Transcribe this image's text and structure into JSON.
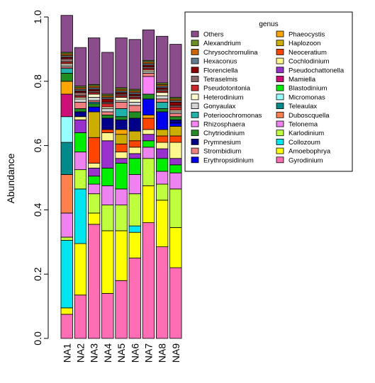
{
  "chart_data": {
    "type": "bar",
    "stacked": true,
    "title": "",
    "xlabel": "",
    "ylabel": "Abundance",
    "ylim": [
      0,
      1
    ],
    "y_ticks": [
      "0.0",
      "0.2",
      "0.4",
      "0.6",
      "0.8",
      "1.0"
    ],
    "grid": false,
    "legend_position": "right",
    "legend_title": "genus",
    "categories": [
      "NA1",
      "NA2",
      "NA3",
      "NA4",
      "NA5",
      "NA6",
      "NA7",
      "NA8",
      "NA9"
    ],
    "series": [
      {
        "name": "Gyrodinium",
        "color": "#ff6eb4",
        "values": [
          0.075,
          0.135,
          0.355,
          0.14,
          0.18,
          0.25,
          0.36,
          0.285,
          0.22
        ]
      },
      {
        "name": "Amoebophrya",
        "color": "#ffff00",
        "values": [
          0.02,
          0.16,
          0.035,
          0.195,
          0.155,
          0.08,
          0.115,
          0.145,
          0.125
        ]
      },
      {
        "name": "Collozoum",
        "color": "#00e5ee",
        "values": [
          0.21,
          0.17,
          0.0,
          0.0,
          0.0,
          0.02,
          0.0,
          0.0,
          0.0
        ]
      },
      {
        "name": "Karlodinium",
        "color": "#c0ff3e",
        "values": [
          0.01,
          0.06,
          0.06,
          0.08,
          0.08,
          0.1,
          0.085,
          0.05,
          0.12
        ]
      },
      {
        "name": "Telonema",
        "color": "#ee82ee",
        "values": [
          0.075,
          0.055,
          0.03,
          0.06,
          0.05,
          0.06,
          0.035,
          0.04,
          0.05
        ]
      },
      {
        "name": "Duboscquella",
        "color": "#ff7f50",
        "values": [
          0.12,
          0.0,
          0.0,
          0.0,
          0.0,
          0.0,
          0.0,
          0.0,
          0.0
        ]
      },
      {
        "name": "Teleaulax",
        "color": "#008b8b",
        "values": [
          0.1,
          0.0,
          0.0,
          0.0,
          0.0,
          0.0,
          0.0,
          0.0,
          0.0
        ]
      },
      {
        "name": "Micromonas",
        "color": "#97ffff",
        "values": [
          0.08,
          0.0,
          0.0,
          0.0,
          0.0,
          0.0,
          0.0,
          0.0,
          0.0
        ]
      },
      {
        "name": "Blastodinium",
        "color": "#00ee00",
        "values": [
          0.0,
          0.06,
          0.025,
          0.055,
          0.08,
          0.05,
          0.02,
          0.04,
          0.025
        ]
      },
      {
        "name": "Mamiella",
        "color": "#cd1076",
        "values": [
          0.07,
          0.0,
          0.0,
          0.0,
          0.0,
          0.0,
          0.0,
          0.0,
          0.0
        ]
      },
      {
        "name": "Pseudochattonella",
        "color": "#9932cc",
        "values": [
          0.0,
          0.04,
          0.025,
          0.085,
          0.015,
          0.015,
          0.02,
          0.03,
          0.02
        ]
      },
      {
        "name": "Cochlodinium",
        "color": "#fff68f",
        "values": [
          0.0,
          0.01,
          0.015,
          0.025,
          0.02,
          0.02,
          0.015,
          0.02,
          0.05
        ]
      },
      {
        "name": "Neoceratium",
        "color": "#ff4500",
        "values": [
          0.0,
          0.0,
          0.08,
          0.01,
          0.025,
          0.02,
          0.035,
          0.02,
          0.02
        ]
      },
      {
        "name": "Haplozoon",
        "color": "#cdad00",
        "values": [
          0.0,
          0.0,
          0.08,
          0.0,
          0.03,
          0.03,
          0.0,
          0.02,
          0.03
        ]
      },
      {
        "name": "Phaeocystis",
        "color": "#ffa500",
        "values": [
          0.04,
          0.0,
          0.0,
          0.0,
          0.015,
          0.0,
          0.01,
          0.0,
          0.0
        ]
      },
      {
        "name": "Erythropsidinium",
        "color": "#0000ee",
        "values": [
          0.0,
          0.0,
          0.015,
          0.0,
          0.0,
          0.0,
          0.05,
          0.055,
          0.01
        ]
      },
      {
        "name": "Prymnesium",
        "color": "#00008b",
        "values": [
          0.0,
          0.015,
          0.0,
          0.035,
          0.03,
          0.04,
          0.0,
          0.0,
          0.01
        ]
      },
      {
        "name": "Chytriodinium",
        "color": "#228b22",
        "values": [
          0.025,
          0.01,
          0.01,
          0.01,
          0.01,
          0.02,
          0.015,
          0.01,
          0.01
        ]
      },
      {
        "name": "Rhizosphaera",
        "color": "#ff83fa",
        "values": [
          0.0,
          0.0,
          0.0,
          0.0,
          0.0,
          0.0,
          0.055,
          0.0,
          0.0
        ]
      },
      {
        "name": "Poterioochromonas",
        "color": "#20b2aa",
        "values": [
          0.015,
          0.0,
          0.005,
          0.0,
          0.025,
          0.0,
          0.0,
          0.02,
          0.0
        ]
      },
      {
        "name": "Strombidium",
        "color": "#f08080",
        "values": [
          0.005,
          0.02,
          0.005,
          0.01,
          0.02,
          0.02,
          0.01,
          0.01,
          0.01
        ]
      },
      {
        "name": "Gonyaulax",
        "color": "#d3d3d3",
        "values": [
          0.005,
          0.01,
          0.01,
          0.01,
          0.005,
          0.01,
          0.005,
          0.01,
          0.005
        ]
      },
      {
        "name": "Heterodinium",
        "color": "#fffacd",
        "values": [
          0.005,
          0.005,
          0.01,
          0.005,
          0.01,
          0.01,
          0.005,
          0.01,
          0.005
        ]
      },
      {
        "name": "Pseudotontonia",
        "color": "#cd2626",
        "values": [
          0.005,
          0.005,
          0.005,
          0.01,
          0.005,
          0.005,
          0.005,
          0.005,
          0.01
        ]
      },
      {
        "name": "Tetraselmis",
        "color": "#8b6969",
        "values": [
          0.01,
          0.01,
          0.005,
          0.005,
          0.005,
          0.005,
          0.005,
          0.005,
          0.005
        ]
      },
      {
        "name": "Florenciella",
        "color": "#8b0000",
        "values": [
          0.005,
          0.005,
          0.005,
          0.01,
          0.005,
          0.005,
          0.005,
          0.005,
          0.01
        ]
      },
      {
        "name": "Hexaconus",
        "color": "#607b8b",
        "values": [
          0.005,
          0.005,
          0.005,
          0.005,
          0.005,
          0.005,
          0.005,
          0.005,
          0.005
        ]
      },
      {
        "name": "Chrysochromulina",
        "color": "#cd6600",
        "values": [
          0.005,
          0.005,
          0.005,
          0.005,
          0.005,
          0.005,
          0.005,
          0.005,
          0.005
        ]
      },
      {
        "name": "Alexandrium",
        "color": "#6b8e23",
        "values": [
          0.005,
          0.005,
          0.005,
          0.005,
          0.005,
          0.005,
          0.005,
          0.005,
          0.005
        ]
      },
      {
        "name": "Others",
        "color": "#8b4c8b",
        "values": [
          0.115,
          0.12,
          0.145,
          0.13,
          0.155,
          0.155,
          0.095,
          0.145,
          0.165
        ]
      }
    ],
    "legend_columns": [
      [
        "Others",
        "Alexandrium",
        "Chrysochromulina",
        "Hexaconus",
        "Florenciella",
        "Tetraselmis",
        "Pseudotontonia",
        "Heterodinium",
        "Gonyaulax",
        "Poterioochromonas",
        "Rhizosphaera",
        "Chytriodinium",
        "Prymnesium",
        "Strombidium",
        "Erythropsidinium"
      ],
      [
        "Phaeocystis",
        "Haplozoon",
        "Neoceratium",
        "Cochlodinium",
        "Pseudochattonella",
        "Mamiella",
        "Blastodinium",
        "Micromonas",
        "Teleaulax",
        "Duboscquella",
        "Telonema",
        "Karlodinium",
        "Collozoum",
        "Amoebophrya",
        "Gyrodinium"
      ]
    ]
  }
}
